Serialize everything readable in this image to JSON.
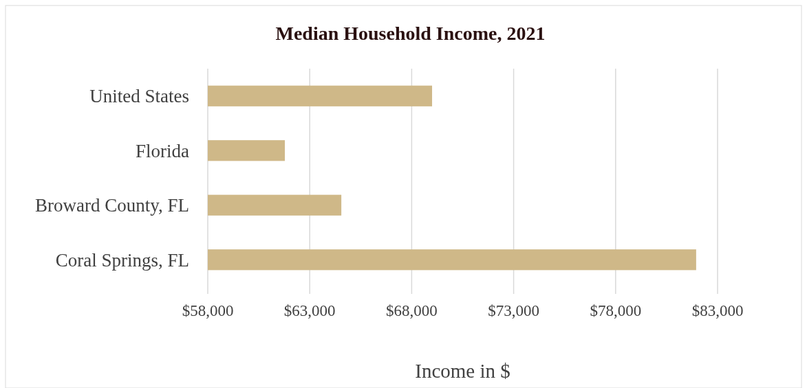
{
  "chart_data": {
    "type": "bar",
    "orientation": "horizontal",
    "title": "Median Household Income, 2021",
    "xlabel": "Income in $",
    "categories": [
      "United States",
      "Florida",
      "Broward County, FL",
      "Coral Springs, FL"
    ],
    "values": [
      69000,
      61780,
      64550,
      81950
    ],
    "color": "#cfb888",
    "xlim": [
      58000,
      83000
    ],
    "xticks": [
      {
        "value": 58000,
        "label": "$58,000"
      },
      {
        "value": 63000,
        "label": "$63,000"
      },
      {
        "value": 68000,
        "label": "$68,000"
      },
      {
        "value": 73000,
        "label": "$73,000"
      },
      {
        "value": 78000,
        "label": "$78,000"
      },
      {
        "value": 83000,
        "label": "$83,000"
      }
    ],
    "grid": "x"
  }
}
